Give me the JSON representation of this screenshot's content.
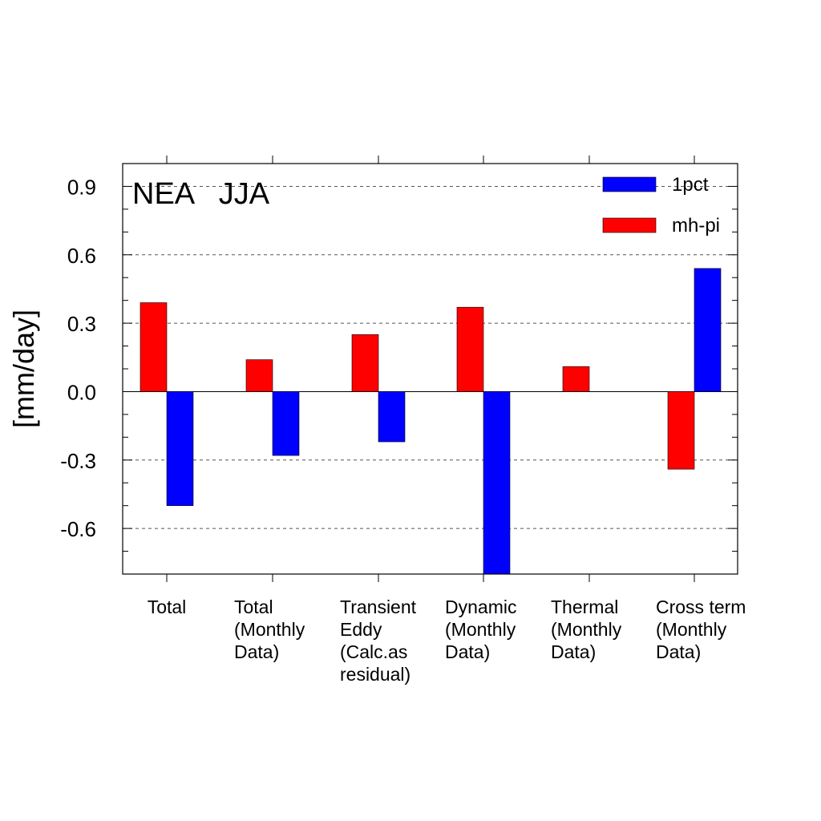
{
  "chart_data": {
    "type": "bar",
    "title": "NEA   JJA",
    "ylabel": "[mm/day]",
    "xlabel": "",
    "ylim": [
      -0.8,
      1.0
    ],
    "yticks": [
      -0.6,
      -0.3,
      0.0,
      0.3,
      0.6,
      0.9
    ],
    "ytick_labels": [
      "-0.6",
      "-0.3",
      "0.0",
      "0.3",
      "0.6",
      "0.9"
    ],
    "grid": "horizontal dashed",
    "legend_position": "top-right",
    "categories": [
      [
        "Total"
      ],
      [
        "Total",
        "(Monthly",
        "Data)"
      ],
      [
        "Transient",
        "Eddy",
        "(Calc.as",
        "residual)"
      ],
      [
        "Dynamic",
        "(Monthly",
        "Data)"
      ],
      [
        "Thermal",
        "(Monthly",
        "Data)"
      ],
      [
        "Cross term",
        "(Monthly",
        "Data)"
      ]
    ],
    "series": [
      {
        "name": "mh-pi",
        "color": "#ff0000",
        "values": [
          0.39,
          0.14,
          0.25,
          0.37,
          0.11,
          -0.34
        ]
      },
      {
        "name": "1pct",
        "color": "#0000ff",
        "values": [
          -0.5,
          -0.28,
          -0.22,
          -0.8,
          0.0,
          0.54
        ]
      }
    ],
    "legend_order": [
      "1pct",
      "mh-pi"
    ]
  }
}
